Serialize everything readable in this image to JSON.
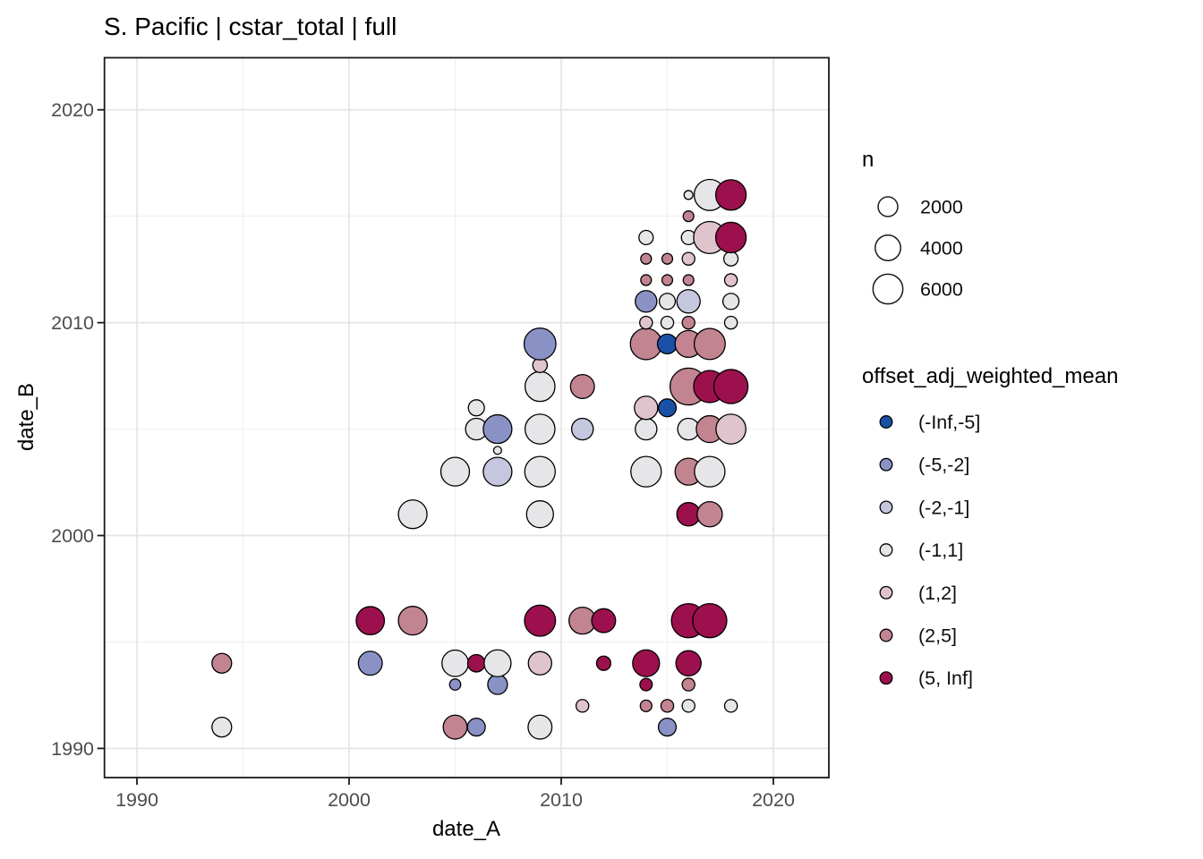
{
  "title": "S. Pacific | cstar_total | full",
  "chart_data": {
    "type": "scatter",
    "title": "S. Pacific | cstar_total | full",
    "xlabel": "date_A",
    "ylabel": "date_B",
    "xlim": [
      1988.5,
      2022.6
    ],
    "ylim": [
      1988.6,
      2022.4
    ],
    "x_ticks": [
      1990,
      2000,
      2010,
      2020
    ],
    "y_ticks": [
      1990,
      2000,
      2010,
      2020
    ],
    "x_minor_ticks": [
      1995,
      2005,
      2015
    ],
    "y_minor_ticks": [
      1995,
      2005,
      2015
    ],
    "grid": "on",
    "legend_position": "right",
    "size_legend": {
      "title": "n",
      "values": [
        2000,
        4000,
        6000
      ]
    },
    "color_legend": {
      "title": "offset_adj_weighted_mean",
      "bins": [
        {
          "label": "(-Inf,-5]",
          "color": "#1a51a6"
        },
        {
          "label": "(-5,-2]",
          "color": "#8a92c5"
        },
        {
          "label": "(-2,-1]",
          "color": "#c5c7de"
        },
        {
          "label": "(-1,1]",
          "color": "#e6e5e8"
        },
        {
          "label": "(1,2]",
          "color": "#dfc4cd"
        },
        {
          "label": "(2,5]",
          "color": "#c28490"
        },
        {
          "label": "(5, Inf]",
          "color": "#9c104d"
        }
      ]
    },
    "points": [
      {
        "x": 1994,
        "y": 1991,
        "n": 2000,
        "bin": "(-1,1]"
      },
      {
        "x": 1994,
        "y": 1994,
        "n": 2000,
        "bin": "(2,5]"
      },
      {
        "x": 2001,
        "y": 1994,
        "n": 3400,
        "bin": "(-5,-2]"
      },
      {
        "x": 2001,
        "y": 1996,
        "n": 5200,
        "bin": "(5, Inf]"
      },
      {
        "x": 2003,
        "y": 1996,
        "n": 5400,
        "bin": "(2,5]"
      },
      {
        "x": 2003,
        "y": 2001,
        "n": 5400,
        "bin": "(-1,1]"
      },
      {
        "x": 2005,
        "y": 1991,
        "n": 3400,
        "bin": "(2,5]"
      },
      {
        "x": 2005,
        "y": 1993,
        "n": 300,
        "bin": "(-5,-2]"
      },
      {
        "x": 2005,
        "y": 1994,
        "n": 4400,
        "bin": "(-1,1]"
      },
      {
        "x": 2005,
        "y": 2003,
        "n": 5400,
        "bin": "(-1,1]"
      },
      {
        "x": 2006,
        "y": 1991,
        "n": 1500,
        "bin": "(-5,-2]"
      },
      {
        "x": 2006,
        "y": 1994,
        "n": 1400,
        "bin": "(5, Inf]"
      },
      {
        "x": 2006,
        "y": 2005,
        "n": 2600,
        "bin": "(-1,1]"
      },
      {
        "x": 2006,
        "y": 2006,
        "n": 1100,
        "bin": "(-1,1]"
      },
      {
        "x": 2007,
        "y": 1993,
        "n": 2000,
        "bin": "(-5,-2]"
      },
      {
        "x": 2007,
        "y": 1994,
        "n": 4600,
        "bin": "(-1,1]"
      },
      {
        "x": 2007,
        "y": 2003,
        "n": 5400,
        "bin": "(-2,-1]"
      },
      {
        "x": 2007,
        "y": 2004,
        "n": 50,
        "bin": "(-1,1]"
      },
      {
        "x": 2007,
        "y": 2005,
        "n": 5400,
        "bin": "(-5,-2]"
      },
      {
        "x": 2009,
        "y": 1991,
        "n": 3400,
        "bin": "(-1,1]"
      },
      {
        "x": 2009,
        "y": 1994,
        "n": 3200,
        "bin": "(1,2]"
      },
      {
        "x": 2009,
        "y": 1996,
        "n": 6600,
        "bin": "(5, Inf]"
      },
      {
        "x": 2009,
        "y": 2001,
        "n": 4600,
        "bin": "(-1,1]"
      },
      {
        "x": 2009,
        "y": 2003,
        "n": 6300,
        "bin": "(-1,1]"
      },
      {
        "x": 2009,
        "y": 2005,
        "n": 6000,
        "bin": "(-1,1]"
      },
      {
        "x": 2009,
        "y": 2007,
        "n": 6000,
        "bin": "(-1,1]"
      },
      {
        "x": 2009,
        "y": 2008,
        "n": 800,
        "bin": "(1,2]"
      },
      {
        "x": 2009,
        "y": 2009,
        "n": 7000,
        "bin": "(-5,-2]"
      },
      {
        "x": 2011,
        "y": 1992,
        "n": 500,
        "bin": "(1,2]"
      },
      {
        "x": 2011,
        "y": 1996,
        "n": 4600,
        "bin": "(2,5]"
      },
      {
        "x": 2011,
        "y": 2005,
        "n": 2600,
        "bin": "(-2,-1]"
      },
      {
        "x": 2011,
        "y": 2007,
        "n": 3400,
        "bin": "(2,5]"
      },
      {
        "x": 2012,
        "y": 1994,
        "n": 750,
        "bin": "(5, Inf]"
      },
      {
        "x": 2012,
        "y": 1996,
        "n": 3400,
        "bin": "(5, Inf]"
      },
      {
        "x": 2014,
        "y": 1992,
        "n": 350,
        "bin": "(2,5]"
      },
      {
        "x": 2014,
        "y": 1993,
        "n": 450,
        "bin": "(5, Inf]"
      },
      {
        "x": 2014,
        "y": 1994,
        "n": 4600,
        "bin": "(5, Inf]"
      },
      {
        "x": 2014,
        "y": 2003,
        "n": 6300,
        "bin": "(-1,1]"
      },
      {
        "x": 2014,
        "y": 2005,
        "n": 2600,
        "bin": "(-1,1]"
      },
      {
        "x": 2014,
        "y": 2006,
        "n": 3200,
        "bin": "(1,2]"
      },
      {
        "x": 2014,
        "y": 2009,
        "n": 6800,
        "bin": "(2,5]"
      },
      {
        "x": 2014,
        "y": 2010,
        "n": 500,
        "bin": "(1,2]"
      },
      {
        "x": 2014,
        "y": 2011,
        "n": 2600,
        "bin": "(-5,-2]"
      },
      {
        "x": 2014,
        "y": 2012,
        "n": 250,
        "bin": "(2,5]"
      },
      {
        "x": 2014,
        "y": 2013,
        "n": 250,
        "bin": "(2,5]"
      },
      {
        "x": 2014,
        "y": 2014,
        "n": 750,
        "bin": "(-1,1]"
      },
      {
        "x": 2015,
        "y": 1991,
        "n": 1500,
        "bin": "(-5,-2]"
      },
      {
        "x": 2015,
        "y": 1992,
        "n": 500,
        "bin": "(2,5]"
      },
      {
        "x": 2015,
        "y": 2006,
        "n": 1500,
        "bin": "(-Inf,-5]"
      },
      {
        "x": 2015,
        "y": 2009,
        "n": 2000,
        "bin": "(-Inf,-5]"
      },
      {
        "x": 2015,
        "y": 2010,
        "n": 500,
        "bin": "(-1,1]"
      },
      {
        "x": 2015,
        "y": 2011,
        "n": 1100,
        "bin": "(-1,1]"
      },
      {
        "x": 2015,
        "y": 2012,
        "n": 250,
        "bin": "(2,5]"
      },
      {
        "x": 2015,
        "y": 2013,
        "n": 250,
        "bin": "(2,5]"
      },
      {
        "x": 2016,
        "y": 1992,
        "n": 500,
        "bin": "(-1,1]"
      },
      {
        "x": 2016,
        "y": 1993,
        "n": 500,
        "bin": "(2,5]"
      },
      {
        "x": 2016,
        "y": 1994,
        "n": 3900,
        "bin": "(5, Inf]"
      },
      {
        "x": 2016,
        "y": 1996,
        "n": 8300,
        "bin": "(5, Inf]"
      },
      {
        "x": 2016,
        "y": 2001,
        "n": 3200,
        "bin": "(5, Inf]"
      },
      {
        "x": 2016,
        "y": 2003,
        "n": 4600,
        "bin": "(2,5]"
      },
      {
        "x": 2016,
        "y": 2005,
        "n": 2600,
        "bin": "(-1,1]"
      },
      {
        "x": 2016,
        "y": 2007,
        "n": 10000,
        "bin": "(2,5]"
      },
      {
        "x": 2016,
        "y": 2009,
        "n": 4600,
        "bin": "(2,5]"
      },
      {
        "x": 2016,
        "y": 2010,
        "n": 500,
        "bin": "(2,5]"
      },
      {
        "x": 2016,
        "y": 2011,
        "n": 3200,
        "bin": "(-2,-1]"
      },
      {
        "x": 2016,
        "y": 2012,
        "n": 250,
        "bin": "(2,5]"
      },
      {
        "x": 2016,
        "y": 2013,
        "n": 500,
        "bin": "(1,2]"
      },
      {
        "x": 2016,
        "y": 2014,
        "n": 750,
        "bin": "(-1,1]"
      },
      {
        "x": 2016,
        "y": 2015,
        "n": 250,
        "bin": "(2,5]"
      },
      {
        "x": 2016,
        "y": 2016,
        "n": 100,
        "bin": "(-1,1]"
      },
      {
        "x": 2017,
        "y": 1996,
        "n": 8300,
        "bin": "(5, Inf]"
      },
      {
        "x": 2017,
        "y": 2001,
        "n": 3900,
        "bin": "(2,5]"
      },
      {
        "x": 2017,
        "y": 2003,
        "n": 6300,
        "bin": "(-1,1]"
      },
      {
        "x": 2017,
        "y": 2005,
        "n": 4600,
        "bin": "(2,5]"
      },
      {
        "x": 2017,
        "y": 2007,
        "n": 7200,
        "bin": "(5, Inf]"
      },
      {
        "x": 2017,
        "y": 2009,
        "n": 6600,
        "bin": "(2,5]"
      },
      {
        "x": 2017,
        "y": 2014,
        "n": 7200,
        "bin": "(1,2]"
      },
      {
        "x": 2017,
        "y": 2016,
        "n": 6600,
        "bin": "(-1,1]"
      },
      {
        "x": 2018,
        "y": 1992,
        "n": 500,
        "bin": "(-1,1]"
      },
      {
        "x": 2018,
        "y": 2005,
        "n": 6000,
        "bin": "(1,2]"
      },
      {
        "x": 2018,
        "y": 2007,
        "n": 8300,
        "bin": "(5, Inf]"
      },
      {
        "x": 2018,
        "y": 2010,
        "n": 500,
        "bin": "(-1,1]"
      },
      {
        "x": 2018,
        "y": 2011,
        "n": 1100,
        "bin": "(-1,1]"
      },
      {
        "x": 2018,
        "y": 2012,
        "n": 500,
        "bin": "(1,2]"
      },
      {
        "x": 2018,
        "y": 2013,
        "n": 750,
        "bin": "(-1,1]"
      },
      {
        "x": 2018,
        "y": 2014,
        "n": 6300,
        "bin": "(5, Inf]"
      },
      {
        "x": 2018,
        "y": 2016,
        "n": 6300,
        "bin": "(5, Inf]"
      }
    ]
  }
}
